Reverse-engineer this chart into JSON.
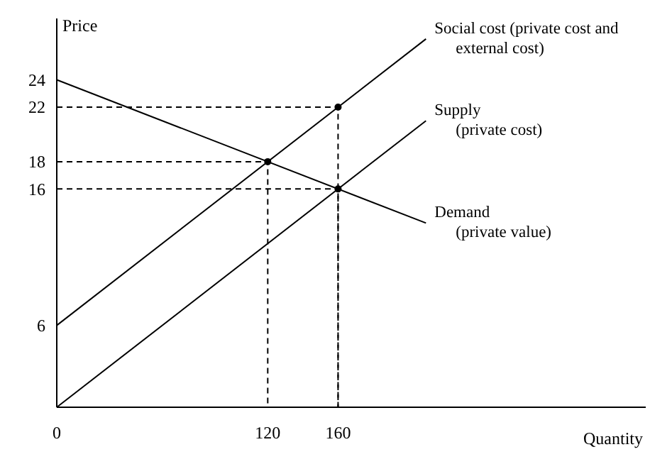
{
  "chart_data": {
    "type": "line",
    "xlabel": "Quantity",
    "ylabel": "Price",
    "xlim": [
      0,
      335
    ],
    "ylim": [
      0,
      28.5
    ],
    "xticks": [
      0,
      120,
      160
    ],
    "yticks": [
      6,
      16,
      18,
      22,
      24
    ],
    "series": [
      {
        "name": "Social cost (private cost and external cost)",
        "color": "#000000",
        "x": [
          0,
          210
        ],
        "values": [
          6,
          27
        ]
      },
      {
        "name": "Supply (private cost)",
        "color": "#000000",
        "x": [
          0,
          210
        ],
        "values": [
          0,
          21
        ]
      },
      {
        "name": "Demand (private value)",
        "color": "#000000",
        "x": [
          0,
          210
        ],
        "values": [
          24,
          13.5
        ]
      },
      {
        "color": "#000000",
        "line_style": "dashed",
        "x": [
          0,
          160,
          160
        ],
        "values": [
          22,
          22,
          0
        ]
      },
      {
        "color": "#000000",
        "line_style": "dashed",
        "x": [
          0,
          120,
          120
        ],
        "values": [
          18,
          18,
          0
        ]
      },
      {
        "color": "#000000",
        "line_style": "dashed",
        "x": [
          0,
          160,
          160
        ],
        "values": [
          16,
          16,
          0
        ]
      },
      {
        "type": "scatter",
        "marker": "circle",
        "color": "#000000",
        "x": [
          160,
          120,
          160
        ],
        "values": [
          22,
          18,
          16
        ]
      }
    ]
  }
}
